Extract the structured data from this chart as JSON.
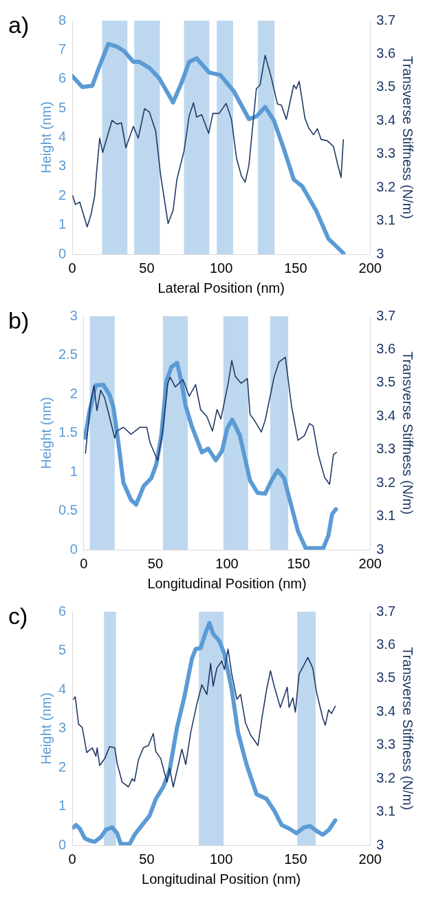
{
  "chart_data": [
    {
      "type": "line",
      "title": "a)",
      "xlabel": "Lateral Position (nm)",
      "ylabel": "Height (nm)",
      "y2label": "Transverse Stiffness (N/m)",
      "xlim": [
        0,
        200
      ],
      "xticks": [
        0,
        50,
        100,
        150,
        200
      ],
      "ylim": [
        0,
        8
      ],
      "yticks": [
        0,
        1,
        2,
        3,
        4,
        5,
        6,
        7,
        8
      ],
      "y2lim": [
        3,
        3.7
      ],
      "y2ticks": [
        3,
        3.1,
        3.2,
        3.3,
        3.4,
        3.5,
        3.6,
        3.7
      ],
      "grid": false,
      "legend": false,
      "bands": [
        {
          "axis": "x",
          "from": 20,
          "to": 37,
          "color": "#bdd7ee"
        },
        {
          "axis": "x",
          "from": 41.6,
          "to": 58.8,
          "color": "#bdd7ee"
        },
        {
          "axis": "x",
          "from": 75,
          "to": 92,
          "color": "#bdd7ee"
        },
        {
          "axis": "x",
          "from": 97,
          "to": 108,
          "color": "#bdd7ee"
        },
        {
          "axis": "x",
          "from": 124.6,
          "to": 135.8,
          "color": "#bdd7ee"
        }
      ],
      "series": [
        {
          "color": "#5b9bd5",
          "x": [
            0,
            6.7,
            13.4,
            18.4,
            24.2,
            30,
            35,
            41,
            45,
            51.8,
            58.5,
            67.7,
            73.5,
            78.5,
            83.5,
            92,
            99.4,
            108.6,
            118.6,
            123.6,
            129.5,
            135.3,
            142,
            148.7,
            154.5,
            163.7,
            172,
            182
          ],
          "values": [
            6.1,
            5.73,
            5.77,
            6.46,
            7.2,
            7.11,
            6.95,
            6.59,
            6.59,
            6.38,
            6.02,
            5.2,
            5.89,
            6.59,
            6.71,
            6.22,
            6.14,
            5.57,
            4.63,
            4.72,
            5.04,
            4.59,
            3.62,
            2.56,
            2.32,
            1.5,
            0.53,
            0.04
          ]
        },
        {
          "color": "#1f3864",
          "axis": "y2",
          "x": [
            0.3,
            2,
            5,
            10,
            12.5,
            15,
            16.7,
            18.4,
            20.4,
            23.4,
            26.7,
            30,
            33,
            36,
            41,
            44.3,
            48.5,
            51.8,
            56,
            59.3,
            64.3,
            67.7,
            70.2,
            75,
            78.5,
            81.4,
            83.5,
            86.9,
            91.6,
            94.4,
            98.6,
            103.3,
            106.9,
            110.3,
            113.6,
            116.1,
            118.6,
            123.6,
            126.1,
            129.5,
            133.7,
            137.8,
            140.4,
            143.7,
            148.7,
            150.4,
            152.4,
            156.2,
            158.7,
            162,
            164.6,
            167.1,
            171.3,
            175.4,
            178,
            180.5,
            182
          ],
          "values": [
            3.175,
            3.149,
            3.156,
            3.082,
            3.117,
            3.174,
            3.266,
            3.348,
            3.305,
            3.351,
            3.401,
            3.39,
            3.394,
            3.319,
            3.383,
            3.348,
            3.436,
            3.426,
            3.369,
            3.238,
            3.092,
            3.131,
            3.223,
            3.309,
            3.415,
            3.454,
            3.411,
            3.418,
            3.362,
            3.422,
            3.422,
            3.452,
            3.404,
            3.287,
            3.234,
            3.216,
            3.266,
            3.496,
            3.507,
            3.596,
            3.528,
            3.45,
            3.447,
            3.404,
            3.507,
            3.496,
            3.518,
            3.408,
            3.379,
            3.358,
            3.376,
            3.344,
            3.34,
            3.323,
            3.273,
            3.23,
            3.343
          ]
        }
      ]
    },
    {
      "type": "line",
      "title": "b)",
      "xlabel": "Longitudinal Position (nm)",
      "ylabel": "Height (nm)",
      "y2label": "Transverse Stiffness (N/m)",
      "xlim": [
        0,
        200
      ],
      "xticks": [
        0,
        50,
        100,
        150,
        200
      ],
      "ylim": [
        0,
        3
      ],
      "yticks": [
        0,
        0.5,
        1,
        1.5,
        2,
        2.5,
        3
      ],
      "y2lim": [
        3,
        3.7
      ],
      "y2ticks": [
        3,
        3.1,
        3.2,
        3.3,
        3.4,
        3.5,
        3.6,
        3.7
      ],
      "grid": false,
      "legend": false,
      "bands": [
        {
          "axis": "x",
          "from": 4.2,
          "to": 21.6,
          "color": "#bdd7ee"
        },
        {
          "axis": "x",
          "from": 55.3,
          "to": 72.6,
          "color": "#bdd7ee"
        },
        {
          "axis": "x",
          "from": 97.5,
          "to": 114.8,
          "color": "#bdd7ee"
        },
        {
          "axis": "x",
          "from": 130.2,
          "to": 142.8,
          "color": "#bdd7ee"
        }
      ],
      "series": [
        {
          "color": "#5b9bd5",
          "x": [
            0.9,
            3.9,
            8.3,
            13.6,
            18,
            20.7,
            24.2,
            27.7,
            33,
            36.6,
            41.9,
            47.2,
            50.7,
            54.2,
            57.8,
            61.3,
            65.2,
            68.4,
            71,
            75.4,
            82.5,
            86.9,
            92.2,
            96.6,
            100.2,
            103.7,
            109,
            116.1,
            121.4,
            126.7,
            131.1,
            135.5,
            139.9,
            144.3,
            149.6,
            155,
            167.3,
            170.8,
            173.5,
            176.1
          ],
          "values": [
            1.44,
            1.77,
            2.11,
            2.12,
            1.99,
            1.83,
            1.37,
            0.86,
            0.64,
            0.58,
            0.82,
            0.92,
            1.1,
            1.47,
            2.17,
            2.35,
            2.4,
            2.14,
            1.86,
            1.59,
            1.25,
            1.3,
            1.15,
            1.27,
            1.56,
            1.67,
            1.47,
            0.89,
            0.73,
            0.72,
            0.89,
            1.02,
            0.92,
            0.61,
            0.24,
            0.02,
            0.02,
            0.18,
            0.46,
            0.52
          ]
        },
        {
          "color": "#1f3864",
          "axis": "y2",
          "x": [
            1.2,
            4.8,
            7.1,
            9.2,
            11.8,
            14.5,
            17.1,
            21.6,
            23.3,
            27.7,
            33,
            39.2,
            44,
            46.3,
            51.6,
            55.1,
            58.7,
            60.4,
            63.9,
            69.3,
            73.7,
            78.1,
            81.6,
            86,
            89.9,
            93.1,
            95.8,
            101,
            103.4,
            105.8,
            109.9,
            114.3,
            116.1,
            119.6,
            124,
            126.7,
            130.2,
            132.9,
            136.4,
            140.8,
            145.2,
            149.6,
            154.1,
            157.6,
            160.2,
            163.8,
            168.2,
            171.7,
            174.4,
            176.5
          ],
          "values": [
            3.289,
            3.442,
            3.492,
            3.417,
            3.478,
            3.456,
            3.413,
            3.335,
            3.356,
            3.367,
            3.346,
            3.367,
            3.367,
            3.321,
            3.267,
            3.356,
            3.499,
            3.517,
            3.488,
            3.51,
            3.46,
            3.495,
            3.42,
            3.399,
            3.356,
            3.42,
            3.392,
            3.502,
            3.567,
            3.52,
            3.499,
            3.513,
            3.406,
            3.385,
            3.353,
            3.388,
            3.46,
            3.517,
            3.563,
            3.577,
            3.428,
            3.328,
            3.342,
            3.378,
            3.371,
            3.285,
            3.217,
            3.196,
            3.285,
            3.292
          ]
        }
      ]
    },
    {
      "type": "line",
      "title": "c)",
      "xlabel": "Longitudinal Position (nm)",
      "ylabel": "Height (nm)",
      "y2label": "Transverse Stiffness (N/m)",
      "xlim": [
        0,
        200
      ],
      "xticks": [
        0,
        50,
        100,
        150,
        200
      ],
      "ylim": [
        0,
        6
      ],
      "yticks": [
        0,
        1,
        2,
        3,
        4,
        5,
        6
      ],
      "y2lim": [
        3,
        3.7
      ],
      "y2ticks": [
        3,
        3.1,
        3.2,
        3.3,
        3.4,
        3.5,
        3.6,
        3.7
      ],
      "grid": false,
      "legend": false,
      "bands": [
        {
          "axis": "x",
          "from": 21.3,
          "to": 29.3,
          "color": "#bdd7ee"
        },
        {
          "axis": "x",
          "from": 85,
          "to": 101.6,
          "color": "#bdd7ee"
        },
        {
          "axis": "x",
          "from": 151.1,
          "to": 163.5,
          "color": "#bdd7ee"
        }
      ],
      "series": [
        {
          "color": "#5b9bd5",
          "x": [
            0.8,
            2.5,
            5,
            8.4,
            11.7,
            15.1,
            19.2,
            22.6,
            26.8,
            30.1,
            32.6,
            38.5,
            41.8,
            46.9,
            51.9,
            56.1,
            61.1,
            65.3,
            70.3,
            75.3,
            80.3,
            82.8,
            86.2,
            89.5,
            92.1,
            94.6,
            98.7,
            102.2,
            107.1,
            111.3,
            117.2,
            123.8,
            130.5,
            135.6,
            140.6,
            145.6,
            150.6,
            155.6,
            159.8,
            164,
            168.2,
            172.4,
            176.6
          ],
          "values": [
            0.46,
            0.52,
            0.43,
            0.18,
            0.12,
            0.09,
            0.21,
            0.4,
            0.46,
            0.31,
            0.03,
            0.03,
            0.27,
            0.52,
            0.76,
            1.19,
            1.5,
            1.92,
            3.02,
            3.82,
            4.79,
            5.04,
            5.07,
            5.46,
            5.71,
            5.43,
            5.25,
            4.91,
            4.0,
            2.9,
            2.05,
            1.31,
            1.19,
            0.89,
            0.52,
            0.43,
            0.31,
            0.46,
            0.49,
            0.37,
            0.27,
            0.4,
            0.64
          ]
        },
        {
          "color": "#1f3864",
          "axis": "y2",
          "x": [
            0.8,
            2,
            4.2,
            6.7,
            9.7,
            13.4,
            15.9,
            16.7,
            18.4,
            21.8,
            25.1,
            28.5,
            30.1,
            33.5,
            37.7,
            40.2,
            41.8,
            44.4,
            47.7,
            51.1,
            54.4,
            56.1,
            59.4,
            61.9,
            63.6,
            65.3,
            67.8,
            71.1,
            73.6,
            76.2,
            79.5,
            83.7,
            87,
            90.4,
            92.9,
            94.6,
            97.1,
            100.4,
            102.2,
            104.6,
            107.1,
            110.5,
            113,
            116.3,
            119.7,
            124.7,
            127.2,
            130.5,
            133.1,
            135.6,
            139.7,
            144.3,
            145.6,
            148.1,
            149.8,
            152.3,
            154.8,
            158.2,
            161.5,
            164,
            168.2,
            169.9,
            172.1,
            174.1,
            176.6
          ],
          "values": [
            3.438,
            3.445,
            3.363,
            3.353,
            3.278,
            3.292,
            3.267,
            3.292,
            3.239,
            3.26,
            3.296,
            3.292,
            3.246,
            3.189,
            3.175,
            3.199,
            3.192,
            3.256,
            3.292,
            3.299,
            3.335,
            3.281,
            3.26,
            3.217,
            3.189,
            3.231,
            3.175,
            3.239,
            3.288,
            3.242,
            3.338,
            3.424,
            3.481,
            3.452,
            3.545,
            3.477,
            3.531,
            3.552,
            3.527,
            3.588,
            3.513,
            3.438,
            3.452,
            3.367,
            3.331,
            3.299,
            3.377,
            3.467,
            3.523,
            3.477,
            3.413,
            3.474,
            3.413,
            3.442,
            3.399,
            3.513,
            3.534,
            3.563,
            3.531,
            3.459,
            3.381,
            3.36,
            3.406,
            3.395,
            3.417
          ]
        }
      ]
    }
  ]
}
